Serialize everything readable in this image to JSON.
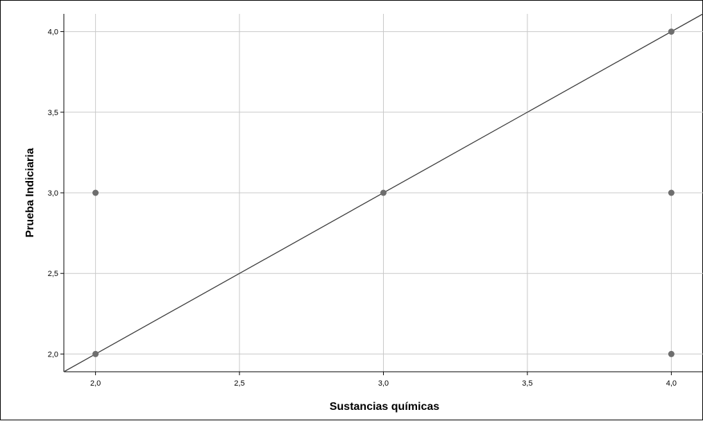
{
  "chart_data": {
    "type": "scatter",
    "title": "",
    "xlabel": "Sustancias químicas",
    "ylabel": "Prueba Indiciaria",
    "xlim": [
      1.89,
      4.11
    ],
    "ylim": [
      1.89,
      4.11
    ],
    "xticks": [
      {
        "value": 2.0,
        "label": "2,0"
      },
      {
        "value": 2.5,
        "label": "2,5"
      },
      {
        "value": 3.0,
        "label": "3,0"
      },
      {
        "value": 3.5,
        "label": "3,5"
      },
      {
        "value": 4.0,
        "label": "4,0"
      }
    ],
    "yticks": [
      {
        "value": 2.0,
        "label": "2,0"
      },
      {
        "value": 2.5,
        "label": "2,5"
      },
      {
        "value": 3.0,
        "label": "3,0"
      },
      {
        "value": 3.5,
        "label": "3,5"
      },
      {
        "value": 4.0,
        "label": "4,0"
      }
    ],
    "points": [
      {
        "x": 2.0,
        "y": 2.0
      },
      {
        "x": 2.0,
        "y": 3.0
      },
      {
        "x": 3.0,
        "y": 3.0
      },
      {
        "x": 4.0,
        "y": 2.0
      },
      {
        "x": 4.0,
        "y": 3.0
      },
      {
        "x": 4.0,
        "y": 4.0
      }
    ],
    "reference_line": {
      "slope": 1,
      "intercept": 0
    },
    "grid": true,
    "colors": {
      "points": "#6e6e6e",
      "line": "#3c3c3c",
      "grid": "#c8c8c8",
      "axis": "#000000"
    }
  }
}
